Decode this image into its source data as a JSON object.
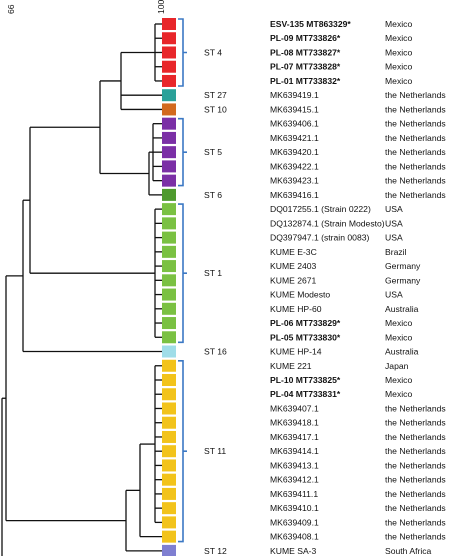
{
  "scale": {
    "left_label": "66",
    "right_label": "100"
  },
  "colors": {
    "ST 4": "#e8262a",
    "ST 27": "#2aa199",
    "ST 10": "#d2691e",
    "ST 5": "#7b2fa6",
    "ST 6": "#4e9a2e",
    "ST 1": "#7ac142",
    "ST 16": "#9fdde8",
    "ST 11": "#f2c31b",
    "ST 12": "#7f7fd1",
    "bracket": "#3b78c4",
    "tree": "#111111"
  },
  "groups": [
    {
      "label": "ST 4",
      "bracket": true
    },
    {
      "label": "ST 27",
      "bracket": false
    },
    {
      "label": "ST 10",
      "bracket": false
    },
    {
      "label": "ST 5",
      "bracket": true
    },
    {
      "label": "ST 6",
      "bracket": false
    },
    {
      "label": "ST 1",
      "bracket": true
    },
    {
      "label": "ST 16",
      "bracket": false
    },
    {
      "label": "ST 11",
      "bracket": true
    },
    {
      "label": "ST 12",
      "bracket": false
    }
  ],
  "leaves": [
    {
      "name": "ESV-135 MT863329*",
      "country": "Mexico",
      "st": "ST 4",
      "bold": true
    },
    {
      "name": "PL-09 MT733826*",
      "country": "Mexico",
      "st": "ST 4",
      "bold": true
    },
    {
      "name": "PL-08 MT733827*",
      "country": "Mexico",
      "st": "ST 4",
      "bold": true
    },
    {
      "name": "PL-07 MT733828*",
      "country": "Mexico",
      "st": "ST 4",
      "bold": true
    },
    {
      "name": "PL-01 MT733832*",
      "country": "Mexico",
      "st": "ST 4",
      "bold": true
    },
    {
      "name": "MK639419.1",
      "country": "the Netherlands",
      "st": "ST 27",
      "bold": false
    },
    {
      "name": "MK639415.1",
      "country": "the Netherlands",
      "st": "ST 10",
      "bold": false
    },
    {
      "name": "MK639406.1",
      "country": "the Netherlands",
      "st": "ST 5",
      "bold": false
    },
    {
      "name": "MK639421.1",
      "country": "the Netherlands",
      "st": "ST 5",
      "bold": false
    },
    {
      "name": "MK639420.1",
      "country": "the Netherlands",
      "st": "ST 5",
      "bold": false
    },
    {
      "name": "MK639422.1",
      "country": "the Netherlands",
      "st": "ST 5",
      "bold": false
    },
    {
      "name": "MK639423.1",
      "country": "the Netherlands",
      "st": "ST 5",
      "bold": false
    },
    {
      "name": "MK639416.1",
      "country": "the Netherlands",
      "st": "ST 6",
      "bold": false
    },
    {
      "name": "DQ017255.1 (Strain 0222)",
      "country": "USA",
      "st": "ST 1",
      "bold": false
    },
    {
      "name": "DQ132874.1 (Strain Modesto)",
      "country": "USA",
      "st": "ST 1",
      "bold": false
    },
    {
      "name": "DQ397947.1 (strain 0083)",
      "country": "USA",
      "st": "ST 1",
      "bold": false
    },
    {
      "name": "KUME E-3C",
      "country": "Brazil",
      "st": "ST 1",
      "bold": false
    },
    {
      "name": "KUME 2403",
      "country": "Germany",
      "st": "ST 1",
      "bold": false
    },
    {
      "name": "KUME 2671",
      "country": "Germany",
      "st": "ST 1",
      "bold": false
    },
    {
      "name": "KUME Modesto",
      "country": "USA",
      "st": "ST 1",
      "bold": false
    },
    {
      "name": "KUME HP-60",
      "country": "Australia",
      "st": "ST 1",
      "bold": false
    },
    {
      "name": "PL-06 MT733829*",
      "country": "Mexico",
      "st": "ST 1",
      "bold": true
    },
    {
      "name": "PL-05 MT733830*",
      "country": "Mexico",
      "st": "ST 1",
      "bold": true
    },
    {
      "name": "KUME HP-14",
      "country": "Australia",
      "st": "ST 16",
      "bold": false
    },
    {
      "name": "KUME 221",
      "country": "Japan",
      "st": "ST 11",
      "bold": false
    },
    {
      "name": "PL-10 MT733825*",
      "country": "Mexico",
      "st": "ST 11",
      "bold": true
    },
    {
      "name": "PL-04 MT733831*",
      "country": "Mexico",
      "st": "ST 11",
      "bold": true
    },
    {
      "name": "MK639407.1",
      "country": "the Netherlands",
      "st": "ST 11",
      "bold": false
    },
    {
      "name": "MK639418.1",
      "country": "the Netherlands",
      "st": "ST 11",
      "bold": false
    },
    {
      "name": "MK639417.1",
      "country": "the Netherlands",
      "st": "ST 11",
      "bold": false
    },
    {
      "name": "MK639414.1",
      "country": "the Netherlands",
      "st": "ST 11",
      "bold": false
    },
    {
      "name": "MK639413.1",
      "country": "the Netherlands",
      "st": "ST 11",
      "bold": false
    },
    {
      "name": "MK639412.1",
      "country": "the Netherlands",
      "st": "ST 11",
      "bold": false
    },
    {
      "name": "MK639411.1",
      "country": "the Netherlands",
      "st": "ST 11",
      "bold": false
    },
    {
      "name": "MK639410.1",
      "country": "the Netherlands",
      "st": "ST 11",
      "bold": false
    },
    {
      "name": "MK639409.1",
      "country": "the Netherlands",
      "st": "ST 11",
      "bold": false
    },
    {
      "name": "MK639408.1",
      "country": "the Netherlands",
      "st": "ST 11",
      "bold": false
    },
    {
      "name": "KUME SA-3",
      "country": "South Africa",
      "st": "ST 12",
      "bold": false
    }
  ]
}
